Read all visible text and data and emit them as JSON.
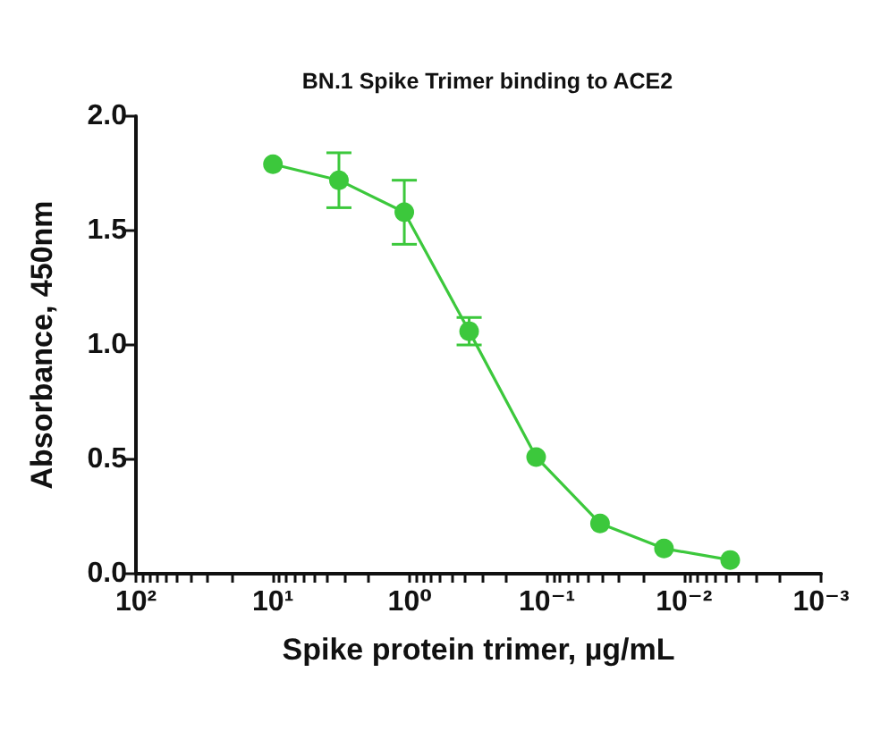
{
  "chart_data": {
    "type": "line",
    "title": "BN.1 Spike Trimer binding to ACE2",
    "xlabel": "Spike protein trimer, µg/mL",
    "ylabel": "Absorbance, 450nm",
    "x": [
      10,
      3.3,
      1.1,
      0.37,
      0.12,
      0.041,
      0.014,
      0.0046
    ],
    "series": [
      {
        "color": "#3cc83c",
        "values": [
          1.79,
          1.72,
          1.58,
          1.06,
          0.51,
          0.22,
          0.11,
          0.06
        ],
        "errors": [
          null,
          0.12,
          0.14,
          0.06,
          null,
          null,
          null,
          null
        ]
      }
    ],
    "log": "x",
    "xlim": [
      100,
      0.001
    ],
    "xticks": [
      {
        "value": 100,
        "label": "10²"
      },
      {
        "value": 90,
        "label": null
      },
      {
        "value": 80,
        "label": null
      },
      {
        "value": 70,
        "label": null
      },
      {
        "value": 60,
        "label": null
      },
      {
        "value": 50,
        "label": null
      },
      {
        "value": 40,
        "label": null
      },
      {
        "value": 30,
        "label": null
      },
      {
        "value": 20,
        "label": null
      },
      {
        "value": 10,
        "label": "10¹"
      },
      {
        "value": 9,
        "label": null
      },
      {
        "value": 8,
        "label": null
      },
      {
        "value": 7,
        "label": null
      },
      {
        "value": 6,
        "label": null
      },
      {
        "value": 5,
        "label": null
      },
      {
        "value": 4,
        "label": null
      },
      {
        "value": 3,
        "label": null
      },
      {
        "value": 2,
        "label": null
      },
      {
        "value": 1,
        "label": "10⁰"
      },
      {
        "value": 0.9,
        "label": null
      },
      {
        "value": 0.8,
        "label": null
      },
      {
        "value": 0.7,
        "label": null
      },
      {
        "value": 0.6,
        "label": null
      },
      {
        "value": 0.5,
        "label": null
      },
      {
        "value": 0.4,
        "label": null
      },
      {
        "value": 0.3,
        "label": null
      },
      {
        "value": 0.2,
        "label": null
      },
      {
        "value": 0.1,
        "label": "10⁻¹"
      },
      {
        "value": 0.09,
        "label": null
      },
      {
        "value": 0.08,
        "label": null
      },
      {
        "value": 0.07,
        "label": null
      },
      {
        "value": 0.06,
        "label": null
      },
      {
        "value": 0.05,
        "label": null
      },
      {
        "value": 0.04,
        "label": null
      },
      {
        "value": 0.03,
        "label": null
      },
      {
        "value": 0.02,
        "label": null
      },
      {
        "value": 0.01,
        "label": "10⁻²"
      },
      {
        "value": 0.009,
        "label": null
      },
      {
        "value": 0.008,
        "label": null
      },
      {
        "value": 0.007,
        "label": null
      },
      {
        "value": 0.006,
        "label": null
      },
      {
        "value": 0.005,
        "label": null
      },
      {
        "value": 0.004,
        "label": null
      },
      {
        "value": 0.003,
        "label": null
      },
      {
        "value": 0.002,
        "label": null
      },
      {
        "value": 0.001,
        "label": "10⁻³"
      }
    ],
    "ylim": [
      0,
      2
    ],
    "yticks": [
      {
        "value": 0,
        "label": "0.0"
      },
      0.5,
      {
        "value": 1,
        "label": "1.0"
      },
      1.5,
      {
        "value": 2,
        "label": "2.0"
      }
    ],
    "grid": false,
    "marker": "circle",
    "line_style": "solid"
  }
}
